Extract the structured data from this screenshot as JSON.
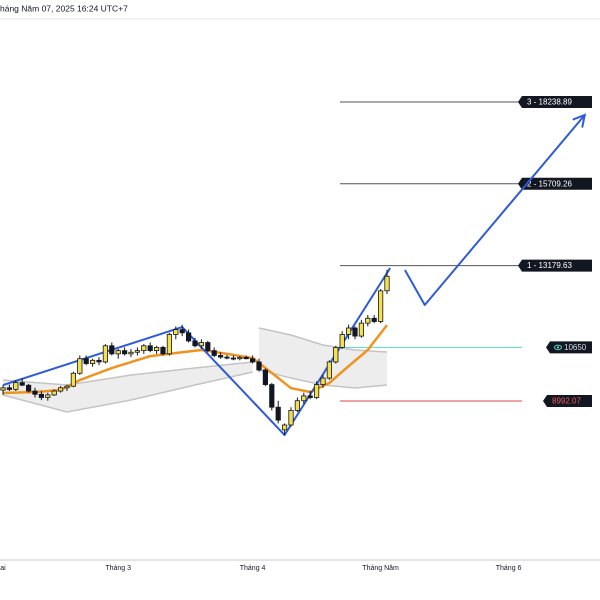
{
  "chart_data": {
    "type": "candlestick",
    "timestamp": "háng Năm 07, 2025 16:24 UTC+7",
    "ylim": [
      4075,
      21393
    ],
    "categories": [
      "ai",
      null,
      null,
      null,
      null,
      null,
      null,
      null,
      null,
      null,
      null,
      null,
      null,
      null,
      null,
      null,
      null,
      null,
      "Tháng 3",
      null,
      null,
      null,
      null,
      null,
      null,
      null,
      null,
      null,
      null,
      null,
      null,
      null,
      null,
      null,
      null,
      null,
      null,
      null,
      null,
      "Tháng 4",
      null,
      null,
      null,
      null,
      null,
      null,
      null,
      null,
      null,
      null,
      null,
      null,
      null,
      null,
      null,
      null,
      null,
      null,
      null,
      "Tháng Năm",
      null,
      null,
      null,
      null,
      null,
      null,
      null,
      null,
      null,
      null,
      null,
      null,
      null,
      null,
      null,
      null,
      null,
      null,
      null,
      "Tháng 6"
    ],
    "open": [
      9330,
      9400,
      9350,
      9560,
      9480,
      9300,
      9200,
      9100,
      9180,
      9300,
      9400,
      9450,
      9850,
      10300,
      10150,
      10250,
      10200,
      10700,
      10450,
      10550,
      10450,
      10500,
      10550,
      10700,
      10550,
      10650,
      10450,
      11050,
      11200,
      11100,
      10850,
      10700,
      10800,
      10550,
      10400,
      10350,
      10320,
      10300,
      10340,
      10300,
      10200,
      9950,
      9500,
      8800,
      8100,
      8250,
      8700,
      9000,
      9150,
      9100,
      9500,
      9700,
      10200,
      10650,
      11050,
      11250,
      11000,
      11400,
      11550,
      11450,
      12400,
      null,
      null,
      null,
      null,
      null,
      null,
      null,
      null,
      null,
      null,
      null,
      null,
      null,
      null,
      null,
      null,
      null,
      null,
      null
    ],
    "high": [
      9480,
      9500,
      9640,
      9700,
      9520,
      9400,
      9300,
      9250,
      9350,
      9450,
      9500,
      9900,
      10400,
      10400,
      10300,
      10350,
      10750,
      10800,
      10600,
      10650,
      10600,
      10650,
      10750,
      10800,
      10700,
      10700,
      11100,
      11300,
      11350,
      11200,
      10950,
      10900,
      10850,
      10650,
      10500,
      10420,
      10400,
      10380,
      10400,
      10400,
      10300,
      10000,
      9550,
      9000,
      8300,
      8800,
      9100,
      9250,
      9300,
      9600,
      9800,
      10250,
      10700,
      11150,
      11350,
      11300,
      11500,
      11650,
      11650,
      12450,
      13050,
      null,
      null,
      null,
      null,
      null,
      null,
      null,
      null,
      null,
      null,
      null,
      null,
      null,
      null,
      null,
      null,
      null,
      null,
      null
    ],
    "low": [
      9180,
      9300,
      9300,
      9450,
      9250,
      9100,
      9020,
      9000,
      9150,
      9250,
      9300,
      9420,
      9800,
      10100,
      10050,
      10100,
      10150,
      10400,
      10300,
      10400,
      10350,
      10400,
      10450,
      10500,
      10450,
      10400,
      10400,
      10900,
      11000,
      10800,
      10650,
      10600,
      10500,
      10350,
      10300,
      10280,
      10250,
      10250,
      10280,
      10150,
      9900,
      9450,
      8700,
      8300,
      7940,
      8200,
      8650,
      8900,
      9050,
      9050,
      9400,
      9650,
      10150,
      10600,
      10900,
      10900,
      10950,
      11300,
      11400,
      11400,
      12300,
      null,
      null,
      null,
      null,
      null,
      null,
      null,
      null,
      null,
      null,
      null,
      null,
      null,
      null,
      null,
      null,
      null,
      null,
      null
    ],
    "close": [
      9400,
      9350,
      9560,
      9480,
      9300,
      9200,
      9100,
      9180,
      9300,
      9400,
      9450,
      9850,
      10300,
      10150,
      10250,
      10200,
      10700,
      10450,
      10550,
      10450,
      10500,
      10550,
      10700,
      10550,
      10650,
      10450,
      11050,
      11200,
      11100,
      10850,
      10700,
      10800,
      10550,
      10400,
      10350,
      10320,
      10300,
      10340,
      10300,
      10200,
      9950,
      9500,
      8800,
      8400,
      8250,
      8700,
      9000,
      9150,
      9100,
      9500,
      9700,
      10200,
      10650,
      11050,
      11250,
      11000,
      11400,
      11550,
      11450,
      12400,
      12850,
      null,
      null,
      null,
      null,
      null,
      null,
      null,
      null,
      null,
      null,
      null,
      null,
      null,
      null,
      null,
      null,
      null,
      null,
      null
    ],
    "up_color": "#f5e04a",
    "down_color": "#131722",
    "ma": {
      "color": "#f0931e",
      "values": [
        9240,
        9246,
        9252,
        9258,
        9264,
        9270,
        9285,
        9300,
        9315,
        9330,
        9433,
        9537,
        9640,
        9714,
        9788,
        9862,
        9936,
        10010,
        10072,
        10133,
        10195,
        10257,
        10318,
        10380,
        10404,
        10428,
        10451,
        10475,
        10499,
        10523,
        10546,
        10570,
        10540,
        10510,
        10480,
        10450,
        10418,
        10385,
        10353,
        10320,
        10167,
        10013,
        9860,
        9703,
        9547,
        9390,
        9350,
        9310,
        9270,
        9363,
        9457,
        9550,
        9723,
        9897,
        10070,
        10237,
        10403,
        10570,
        10827,
        11083,
        11340,
        null,
        null,
        null,
        null,
        null,
        null,
        null,
        null,
        null,
        null,
        null,
        null,
        null,
        null,
        null,
        null,
        null,
        null,
        null
      ]
    },
    "bands": [
      {
        "x": [
          0,
          10,
          20,
          30,
          39
        ],
        "upper": [
          9640,
          9486,
          9795,
          10012,
          10197
        ],
        "lower": [
          9177,
          8651,
          9022,
          9486,
          9888
        ]
      },
      {
        "x": [
          40,
          45,
          50,
          55,
          60
        ],
        "upper": [
          11249,
          11032,
          10723,
          10568,
          10507
        ],
        "lower": [
          9950,
          9702,
          9486,
          9393,
          9486
        ]
      }
    ],
    "pattern": {
      "color": "#2e5bd9",
      "x": [
        0,
        28,
        44,
        60.5
      ],
      "y": [
        9486,
        11280,
        7940,
        13105
      ]
    },
    "projection": {
      "color": "#2e5bd9",
      "x": [
        62.8,
        65.9,
        90.9
      ],
      "y": [
        13043,
        11960,
        17837
      ]
    },
    "levels": [
      {
        "label": "3 - 18238.89",
        "value": 18238.89,
        "color": "#555555",
        "label_color": "#ffffff"
      },
      {
        "label": "2 - 15709.26",
        "value": 15709.26,
        "color": "#555555",
        "label_color": "#ffffff"
      },
      {
        "label": "1 - 13179.63",
        "value": 13179.63,
        "color": "#555555",
        "label_color": "#ffffff"
      },
      {
        "label": "10650",
        "value": 10650,
        "color": "#5fd3c4",
        "label_color": "#d9dde6",
        "icon": "eye"
      },
      {
        "label": "8992.07",
        "value": 8992.07,
        "color": "#e0464e",
        "label_color": "#f05a60"
      }
    ]
  }
}
